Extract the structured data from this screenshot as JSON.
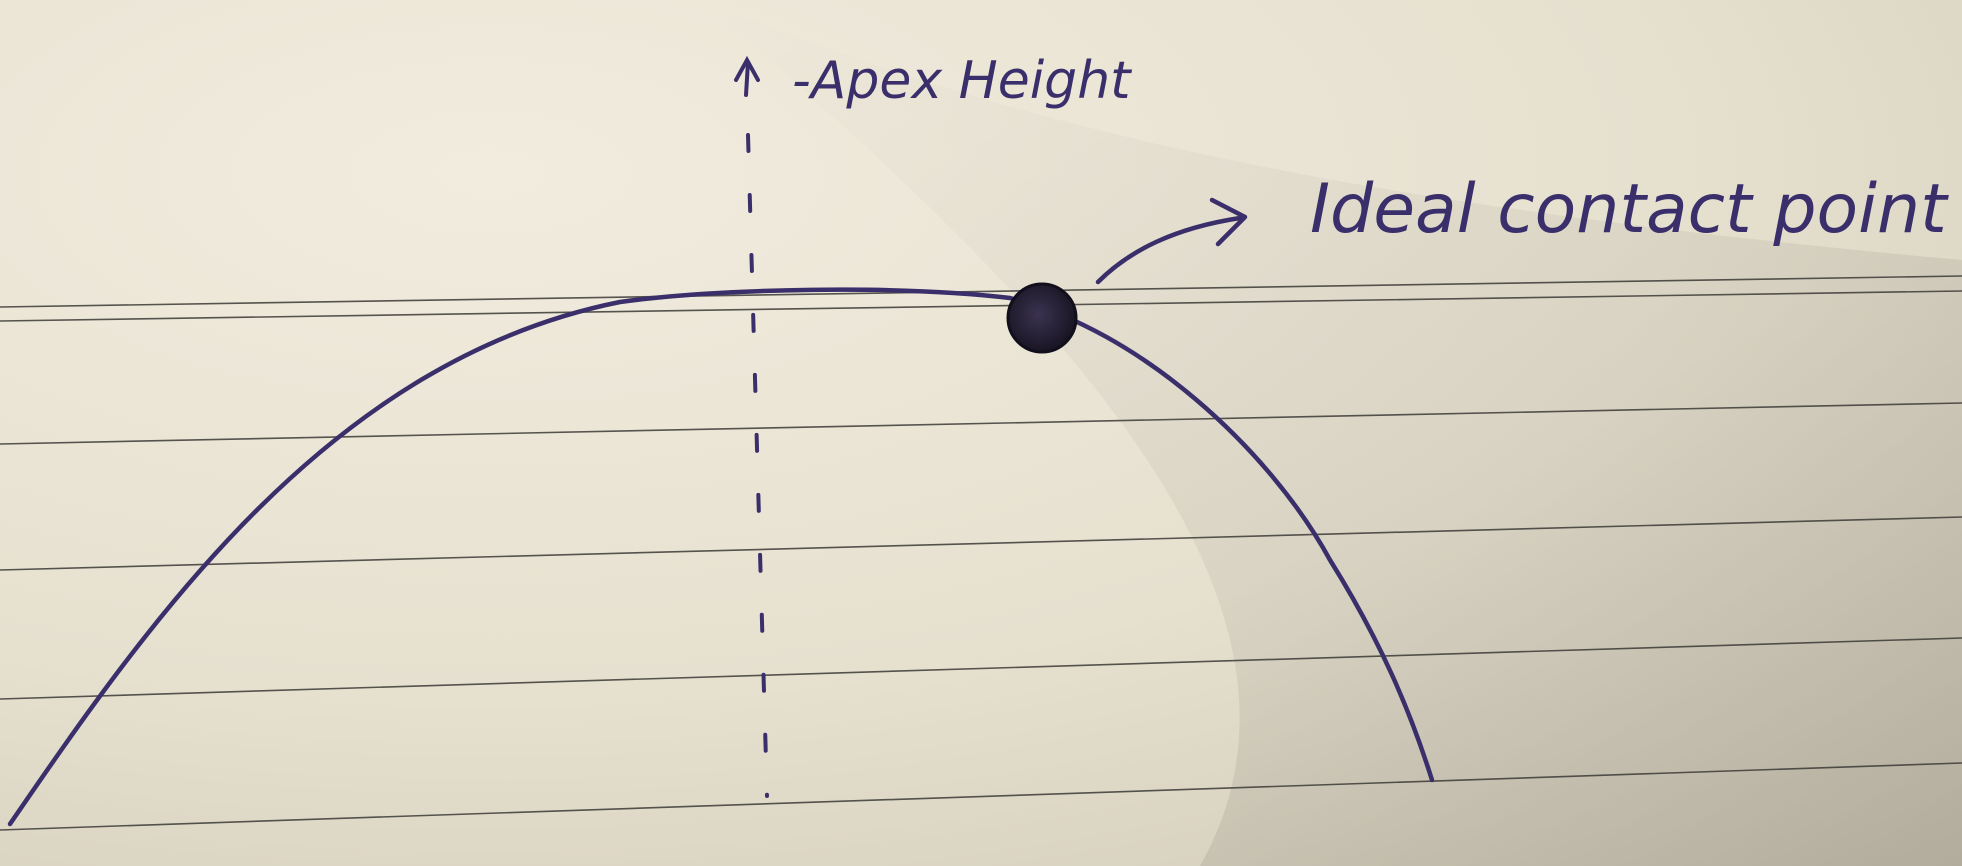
{
  "labels": {
    "apex": "-Apex Height",
    "contact": "Ideal contact point"
  },
  "colors": {
    "paper": "#ebe6d6",
    "paper_shadow": "#c9c2b0",
    "ruled_line": "#3b3a36",
    "ink": "#3a2f6b",
    "contact_dot": "#1f1a33"
  }
}
